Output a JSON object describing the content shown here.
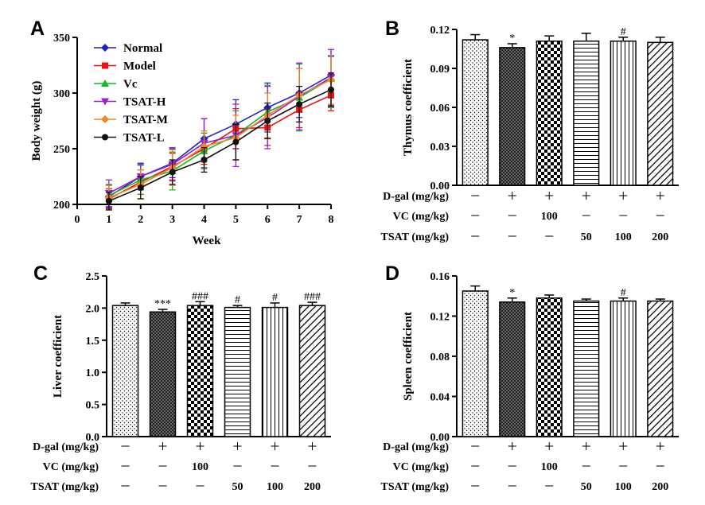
{
  "chart_data": [
    {
      "panel": "A",
      "type": "line",
      "xlabel": "Week",
      "ylabel": "Body weight (g)",
      "xlim": [
        0,
        8
      ],
      "ylim": [
        200,
        350
      ],
      "xticks": [
        "0",
        "1",
        "2",
        "3",
        "4",
        "5",
        "6",
        "7",
        "8"
      ],
      "yticks": [
        "200",
        "250",
        "300",
        "350"
      ],
      "legend_position": "top-left",
      "x": [
        1,
        2,
        3,
        4,
        5,
        6,
        7,
        8
      ],
      "series": [
        {
          "name": "Normal",
          "color": "#2222cc",
          "marker": "diamond",
          "values": [
            207,
            225,
            237,
            259,
            272,
            287,
            300,
            316
          ],
          "errors": [
            10,
            12,
            13,
            18,
            22,
            22,
            22,
            17
          ]
        },
        {
          "name": "Model",
          "color": "#ee1111",
          "marker": "square",
          "values": [
            205,
            220,
            234,
            250,
            268,
            269,
            285,
            298
          ],
          "errors": [
            9,
            11,
            12,
            14,
            18,
            16,
            16,
            14
          ]
        },
        {
          "name": "Vc",
          "color": "#11bb22",
          "marker": "triangle",
          "values": [
            208,
            222,
            230,
            248,
            262,
            283,
            296,
            313
          ],
          "errors": [
            10,
            13,
            17,
            16,
            22,
            24,
            30,
            26
          ]
        },
        {
          "name": "TSAT-H",
          "color": "#9922cc",
          "marker": "triangle-down",
          "values": [
            210,
            225,
            236,
            255,
            262,
            278,
            297,
            314
          ],
          "errors": [
            12,
            11,
            15,
            22,
            28,
            28,
            30,
            25
          ]
        },
        {
          "name": "TSAT-M",
          "color": "#ee8822",
          "marker": "diamond",
          "values": [
            206,
            218,
            233,
            252,
            260,
            280,
            298,
            312
          ],
          "errors": [
            11,
            13,
            16,
            14,
            20,
            20,
            24,
            22
          ]
        },
        {
          "name": "TSAT-L",
          "color": "#111111",
          "marker": "circle",
          "values": [
            203,
            215,
            229,
            240,
            256,
            275,
            290,
            303
          ],
          "errors": [
            8,
            10,
            11,
            11,
            16,
            16,
            16,
            15
          ]
        }
      ]
    },
    {
      "panel": "B",
      "type": "bar",
      "ylabel": "Thymus coefficient",
      "ylim": [
        0,
        0.12
      ],
      "yticks": [
        "0.00",
        "0.03",
        "0.06",
        "0.09",
        "0.12"
      ],
      "values": [
        0.112,
        0.106,
        0.111,
        0.111,
        0.111,
        0.11
      ],
      "errors": [
        0.004,
        0.003,
        0.004,
        0.006,
        0.003,
        0.004
      ],
      "annotations": [
        "",
        "*",
        "",
        "",
        "#",
        ""
      ]
    },
    {
      "panel": "C",
      "type": "bar",
      "ylabel": "Liver coefficient",
      "ylim": [
        0,
        2.5
      ],
      "yticks": [
        "0.0",
        "0.5",
        "1.0",
        "1.5",
        "2.0",
        "2.5"
      ],
      "values": [
        2.04,
        1.94,
        2.04,
        2.01,
        2.01,
        2.04
      ],
      "errors": [
        0.04,
        0.04,
        0.06,
        0.03,
        0.07,
        0.05
      ],
      "annotations": [
        "",
        "***",
        "###",
        "#",
        "#",
        "###"
      ]
    },
    {
      "panel": "D",
      "type": "bar",
      "ylabel": "Spleen coefficient",
      "ylim": [
        0,
        0.16
      ],
      "yticks": [
        "0.00",
        "0.04",
        "0.08",
        "0.12",
        "0.16"
      ],
      "values": [
        0.145,
        0.134,
        0.138,
        0.135,
        0.135,
        0.135
      ],
      "errors": [
        0.005,
        0.004,
        0.003,
        0.002,
        0.003,
        0.002
      ],
      "annotations": [
        "",
        "*",
        "",
        "",
        "#",
        ""
      ]
    }
  ],
  "treatment_table": {
    "rows": [
      {
        "label": "D-gal (mg/kg)",
        "cells": [
          "—",
          "+",
          "+",
          "+",
          "+",
          "+"
        ]
      },
      {
        "label": "VC (mg/kg)",
        "cells": [
          "—",
          "—",
          "100",
          "—",
          "—",
          "—"
        ]
      },
      {
        "label": "TSAT (mg/kg)",
        "cells": [
          "—",
          "—",
          "—",
          "50",
          "100",
          "200"
        ]
      }
    ]
  },
  "bar_patterns": [
    "dots",
    "dense-check",
    "checker",
    "horizontal",
    "vertical",
    "diagonal"
  ]
}
